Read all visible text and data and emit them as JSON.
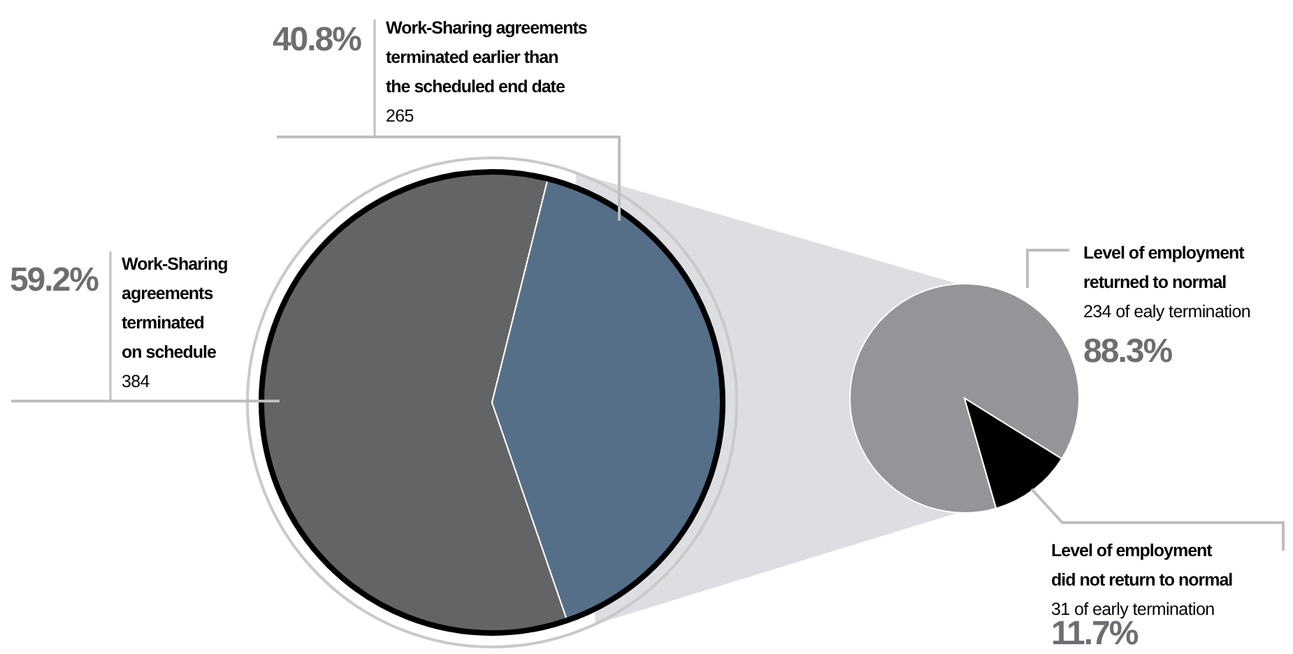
{
  "chart_data": [
    {
      "type": "pie",
      "categories": [
        "Work-Sharing agreements terminated on schedule",
        "Work-Sharing agreements terminated earlier than the scheduled end date"
      ],
      "values": [
        384,
        265
      ],
      "colors": [
        "#636466",
        "#566f89"
      ],
      "value_labels": [
        "384",
        "265"
      ],
      "annotations": [
        "59.2%",
        "40.8%"
      ]
    },
    {
      "type": "pie",
      "categories": [
        "Level of employment returned to normal",
        "Level of employment did not return to normal"
      ],
      "values": [
        234,
        31
      ],
      "colors": [
        "#939598",
        "#000000"
      ],
      "value_labels": [
        "234 of ealy termination",
        "31 of early termination"
      ],
      "annotations": [
        "88.3%",
        "11.7%"
      ]
    }
  ]
}
